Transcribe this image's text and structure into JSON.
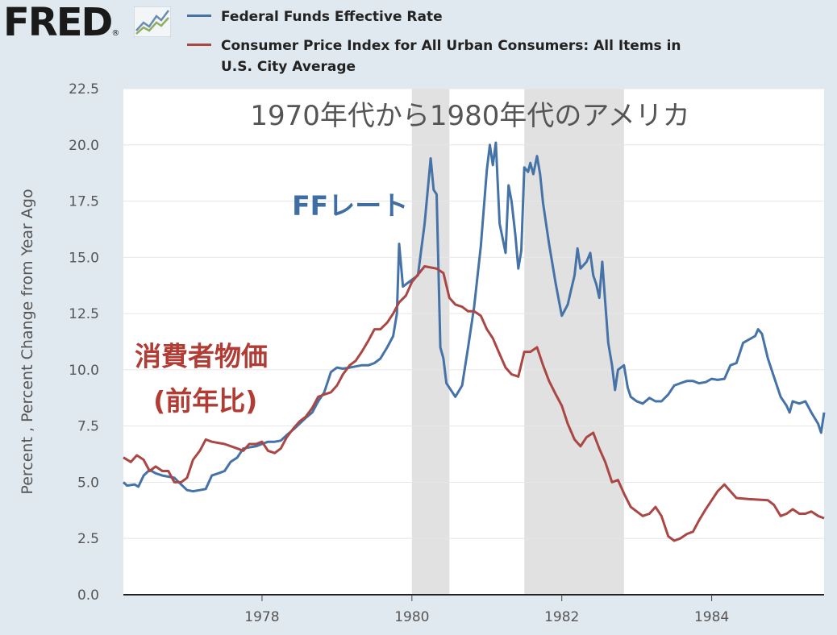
{
  "header": {
    "logo_text": "FRED",
    "logo_mark": "®",
    "logo_icon": "trend-chart-icon"
  },
  "chart_data": {
    "type": "line",
    "title": "1970年代から1980年代のアメリカ",
    "xlabel": "",
    "ylabel": "Percent , Percent Change from Year Ago",
    "xlim": [
      1976.15,
      1985.5
    ],
    "ylim": [
      0,
      22.5
    ],
    "yticks": [
      "0.0",
      "2.5",
      "5.0",
      "7.5",
      "10.0",
      "12.5",
      "15.0",
      "17.5",
      "20.0",
      "22.5"
    ],
    "xticks": [
      "1978",
      "1980",
      "1982",
      "1984"
    ],
    "grid": "horizontal",
    "legend_position": "top",
    "recessions": [
      [
        1980.0,
        1980.5
      ],
      [
        1981.5,
        1982.83
      ]
    ],
    "annotations": [
      {
        "text": "FFレート",
        "x": 1978.4,
        "y": 16.9,
        "color": "#3f6ea3"
      },
      {
        "text": "消費者物価",
        "x": 1976.3,
        "y": 10.2,
        "color": "#b23b34"
      },
      {
        "text": "(前年比)",
        "x": 1976.55,
        "y": 8.2,
        "color": "#b23b34"
      }
    ],
    "series": [
      {
        "name": "Federal Funds Effective Rate",
        "color": "#4572a7",
        "points": [
          [
            1976.15,
            5.0
          ],
          [
            1976.2,
            4.85
          ],
          [
            1976.3,
            4.9
          ],
          [
            1976.35,
            4.8
          ],
          [
            1976.42,
            5.3
          ],
          [
            1976.5,
            5.55
          ],
          [
            1976.58,
            5.4
          ],
          [
            1976.67,
            5.3
          ],
          [
            1976.75,
            5.25
          ],
          [
            1976.83,
            5.2
          ],
          [
            1976.92,
            4.9
          ],
          [
            1977.0,
            4.65
          ],
          [
            1977.08,
            4.6
          ],
          [
            1977.17,
            4.65
          ],
          [
            1977.25,
            4.7
          ],
          [
            1977.33,
            5.3
          ],
          [
            1977.42,
            5.4
          ],
          [
            1977.5,
            5.5
          ],
          [
            1977.58,
            5.9
          ],
          [
            1977.67,
            6.1
          ],
          [
            1977.75,
            6.5
          ],
          [
            1977.83,
            6.55
          ],
          [
            1977.92,
            6.6
          ],
          [
            1978.0,
            6.7
          ],
          [
            1978.08,
            6.8
          ],
          [
            1978.17,
            6.8
          ],
          [
            1978.25,
            6.85
          ],
          [
            1978.33,
            7.1
          ],
          [
            1978.42,
            7.35
          ],
          [
            1978.5,
            7.6
          ],
          [
            1978.58,
            7.85
          ],
          [
            1978.67,
            8.1
          ],
          [
            1978.75,
            8.6
          ],
          [
            1978.83,
            9.0
          ],
          [
            1978.92,
            9.9
          ],
          [
            1979.0,
            10.1
          ],
          [
            1979.08,
            10.05
          ],
          [
            1979.17,
            10.1
          ],
          [
            1979.25,
            10.15
          ],
          [
            1979.33,
            10.2
          ],
          [
            1979.42,
            10.2
          ],
          [
            1979.5,
            10.3
          ],
          [
            1979.58,
            10.5
          ],
          [
            1979.67,
            11.0
          ],
          [
            1979.75,
            11.5
          ],
          [
            1979.8,
            12.5
          ],
          [
            1979.83,
            15.6
          ],
          [
            1979.88,
            13.7
          ],
          [
            1979.92,
            13.8
          ],
          [
            1980.0,
            14.0
          ],
          [
            1980.08,
            14.2
          ],
          [
            1980.17,
            16.5
          ],
          [
            1980.25,
            19.4
          ],
          [
            1980.29,
            18.0
          ],
          [
            1980.33,
            17.8
          ],
          [
            1980.38,
            11.0
          ],
          [
            1980.42,
            10.5
          ],
          [
            1980.46,
            9.4
          ],
          [
            1980.5,
            9.2
          ],
          [
            1980.58,
            8.8
          ],
          [
            1980.67,
            9.3
          ],
          [
            1980.75,
            11.0
          ],
          [
            1980.83,
            12.8
          ],
          [
            1980.92,
            15.5
          ],
          [
            1981.0,
            18.9
          ],
          [
            1981.04,
            20.0
          ],
          [
            1981.08,
            19.1
          ],
          [
            1981.12,
            20.1
          ],
          [
            1981.17,
            16.5
          ],
          [
            1981.25,
            15.2
          ],
          [
            1981.29,
            18.2
          ],
          [
            1981.33,
            17.5
          ],
          [
            1981.38,
            16.0
          ],
          [
            1981.42,
            14.5
          ],
          [
            1981.46,
            15.3
          ],
          [
            1981.5,
            19.0
          ],
          [
            1981.55,
            18.8
          ],
          [
            1981.58,
            19.2
          ],
          [
            1981.62,
            18.7
          ],
          [
            1981.67,
            19.5
          ],
          [
            1981.71,
            18.7
          ],
          [
            1981.75,
            17.4
          ],
          [
            1981.83,
            15.6
          ],
          [
            1981.92,
            13.8
          ],
          [
            1982.0,
            12.4
          ],
          [
            1982.08,
            12.9
          ],
          [
            1982.12,
            13.5
          ],
          [
            1982.17,
            14.2
          ],
          [
            1982.21,
            15.4
          ],
          [
            1982.25,
            14.5
          ],
          [
            1982.33,
            14.8
          ],
          [
            1982.38,
            15.2
          ],
          [
            1982.42,
            14.2
          ],
          [
            1982.46,
            13.8
          ],
          [
            1982.5,
            13.2
          ],
          [
            1982.54,
            14.8
          ],
          [
            1982.58,
            13.0
          ],
          [
            1982.62,
            11.2
          ],
          [
            1982.67,
            10.2
          ],
          [
            1982.71,
            9.1
          ],
          [
            1982.75,
            10.0
          ],
          [
            1982.83,
            10.2
          ],
          [
            1982.88,
            9.2
          ],
          [
            1982.92,
            8.8
          ],
          [
            1983.0,
            8.6
          ],
          [
            1983.08,
            8.5
          ],
          [
            1983.17,
            8.75
          ],
          [
            1983.25,
            8.6
          ],
          [
            1983.33,
            8.6
          ],
          [
            1983.42,
            8.9
          ],
          [
            1983.5,
            9.3
          ],
          [
            1983.58,
            9.4
          ],
          [
            1983.67,
            9.5
          ],
          [
            1983.75,
            9.5
          ],
          [
            1983.83,
            9.4
          ],
          [
            1983.92,
            9.45
          ],
          [
            1984.0,
            9.6
          ],
          [
            1984.08,
            9.55
          ],
          [
            1984.17,
            9.6
          ],
          [
            1984.25,
            10.2
          ],
          [
            1984.33,
            10.3
          ],
          [
            1984.42,
            11.2
          ],
          [
            1984.5,
            11.35
          ],
          [
            1984.58,
            11.5
          ],
          [
            1984.62,
            11.8
          ],
          [
            1984.67,
            11.6
          ],
          [
            1984.75,
            10.5
          ],
          [
            1984.83,
            9.7
          ],
          [
            1984.92,
            8.8
          ],
          [
            1985.0,
            8.4
          ],
          [
            1985.04,
            8.1
          ],
          [
            1985.08,
            8.6
          ],
          [
            1985.17,
            8.5
          ],
          [
            1985.25,
            8.6
          ],
          [
            1985.33,
            8.1
          ],
          [
            1985.42,
            7.6
          ],
          [
            1985.46,
            7.2
          ],
          [
            1985.5,
            8.1
          ]
        ]
      },
      {
        "name": "Consumer Price Index for All Urban Consumers: All Items in U.S. City Average",
        "color": "#aa4643",
        "points": [
          [
            1976.15,
            6.1
          ],
          [
            1976.25,
            5.9
          ],
          [
            1976.33,
            6.2
          ],
          [
            1976.42,
            6.0
          ],
          [
            1976.5,
            5.5
          ],
          [
            1976.58,
            5.7
          ],
          [
            1976.67,
            5.5
          ],
          [
            1976.75,
            5.5
          ],
          [
            1976.83,
            5.0
          ],
          [
            1976.92,
            5.0
          ],
          [
            1977.0,
            5.2
          ],
          [
            1977.08,
            6.0
          ],
          [
            1977.17,
            6.4
          ],
          [
            1977.25,
            6.9
          ],
          [
            1977.33,
            6.8
          ],
          [
            1977.5,
            6.7
          ],
          [
            1977.67,
            6.5
          ],
          [
            1977.75,
            6.4
          ],
          [
            1977.83,
            6.7
          ],
          [
            1977.92,
            6.7
          ],
          [
            1978.0,
            6.8
          ],
          [
            1978.08,
            6.4
          ],
          [
            1978.17,
            6.3
          ],
          [
            1978.25,
            6.5
          ],
          [
            1978.33,
            7.0
          ],
          [
            1978.42,
            7.4
          ],
          [
            1978.5,
            7.7
          ],
          [
            1978.58,
            7.9
          ],
          [
            1978.67,
            8.3
          ],
          [
            1978.75,
            8.8
          ],
          [
            1978.83,
            8.9
          ],
          [
            1978.92,
            9.0
          ],
          [
            1979.0,
            9.3
          ],
          [
            1979.08,
            9.8
          ],
          [
            1979.17,
            10.2
          ],
          [
            1979.25,
            10.4
          ],
          [
            1979.33,
            10.8
          ],
          [
            1979.42,
            11.3
          ],
          [
            1979.5,
            11.8
          ],
          [
            1979.58,
            11.8
          ],
          [
            1979.67,
            12.1
          ],
          [
            1979.75,
            12.5
          ],
          [
            1979.83,
            13.0
          ],
          [
            1979.92,
            13.3
          ],
          [
            1980.0,
            13.9
          ],
          [
            1980.17,
            14.6
          ],
          [
            1980.33,
            14.5
          ],
          [
            1980.42,
            14.3
          ],
          [
            1980.5,
            13.2
          ],
          [
            1980.58,
            12.9
          ],
          [
            1980.67,
            12.8
          ],
          [
            1980.75,
            12.6
          ],
          [
            1980.83,
            12.6
          ],
          [
            1980.92,
            12.4
          ],
          [
            1981.0,
            11.8
          ],
          [
            1981.08,
            11.4
          ],
          [
            1981.17,
            10.7
          ],
          [
            1981.25,
            10.1
          ],
          [
            1981.33,
            9.8
          ],
          [
            1981.42,
            9.7
          ],
          [
            1981.5,
            10.8
          ],
          [
            1981.58,
            10.8
          ],
          [
            1981.67,
            11.0
          ],
          [
            1981.75,
            10.2
          ],
          [
            1981.83,
            9.5
          ],
          [
            1981.92,
            8.9
          ],
          [
            1982.0,
            8.4
          ],
          [
            1982.08,
            7.6
          ],
          [
            1982.17,
            6.9
          ],
          [
            1982.25,
            6.6
          ],
          [
            1982.33,
            7.0
          ],
          [
            1982.42,
            7.2
          ],
          [
            1982.5,
            6.5
          ],
          [
            1982.58,
            5.9
          ],
          [
            1982.67,
            5.0
          ],
          [
            1982.75,
            5.1
          ],
          [
            1982.83,
            4.5
          ],
          [
            1982.92,
            3.9
          ],
          [
            1983.0,
            3.7
          ],
          [
            1983.08,
            3.5
          ],
          [
            1983.17,
            3.6
          ],
          [
            1983.25,
            3.9
          ],
          [
            1983.33,
            3.5
          ],
          [
            1983.42,
            2.6
          ],
          [
            1983.5,
            2.4
          ],
          [
            1983.58,
            2.5
          ],
          [
            1983.67,
            2.7
          ],
          [
            1983.75,
            2.8
          ],
          [
            1983.83,
            3.3
          ],
          [
            1983.92,
            3.8
          ],
          [
            1984.0,
            4.2
          ],
          [
            1984.08,
            4.6
          ],
          [
            1984.17,
            4.9
          ],
          [
            1984.25,
            4.6
          ],
          [
            1984.33,
            4.3
          ],
          [
            1984.5,
            4.25
          ],
          [
            1984.75,
            4.2
          ],
          [
            1984.83,
            4.0
          ],
          [
            1984.92,
            3.5
          ],
          [
            1985.0,
            3.6
          ],
          [
            1985.08,
            3.8
          ],
          [
            1985.17,
            3.6
          ],
          [
            1985.25,
            3.6
          ],
          [
            1985.33,
            3.7
          ],
          [
            1985.42,
            3.5
          ],
          [
            1985.5,
            3.4
          ]
        ]
      }
    ]
  }
}
